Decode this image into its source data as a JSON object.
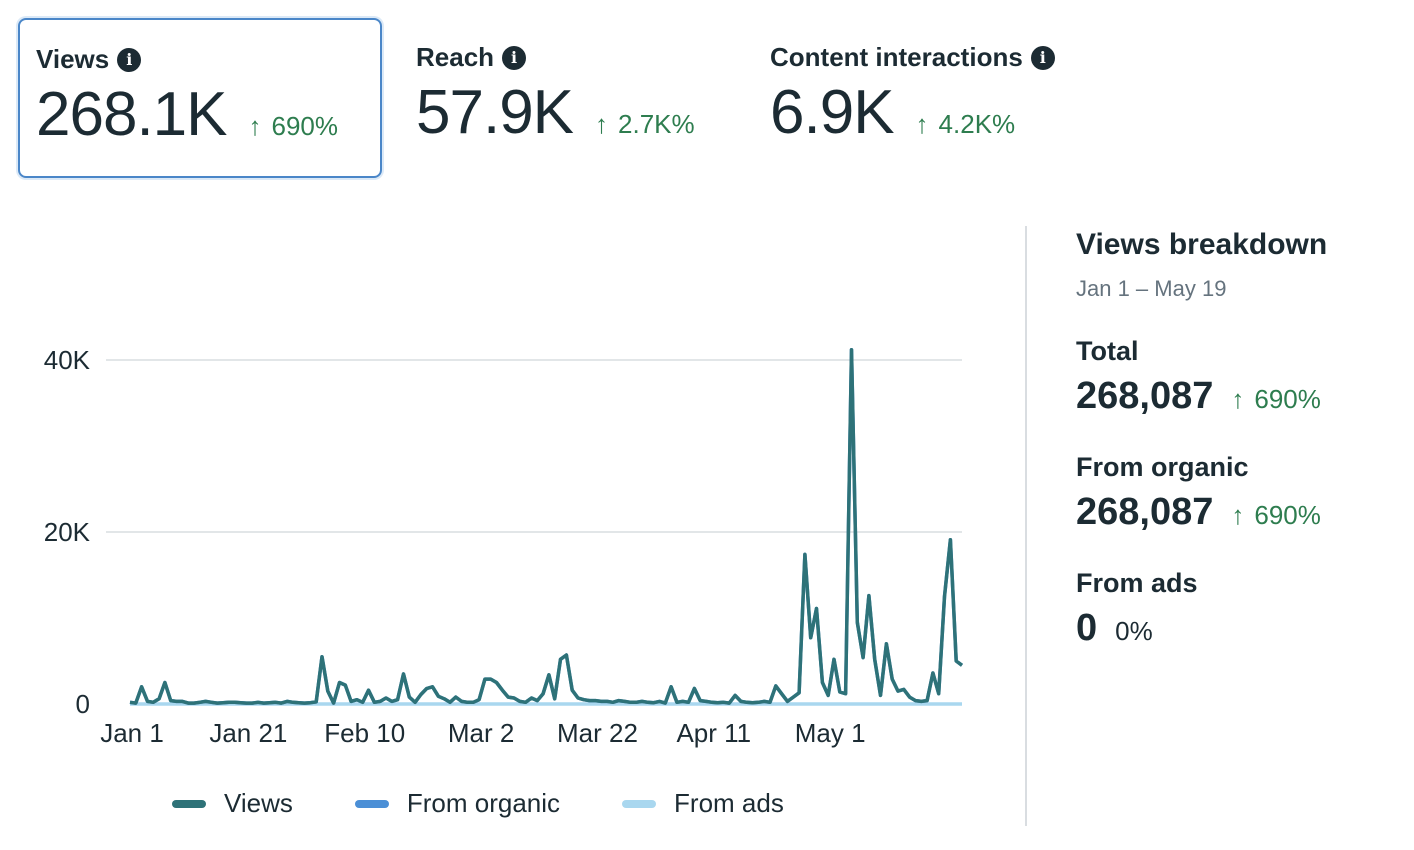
{
  "metrics": [
    {
      "label": "Views",
      "value": "268.1K",
      "delta": "690%",
      "selected": true
    },
    {
      "label": "Reach",
      "value": "57.9K",
      "delta": "2.7K%",
      "selected": false
    },
    {
      "label": "Content interactions",
      "value": "6.9K",
      "delta": "4.2K%",
      "selected": false
    }
  ],
  "legend": [
    {
      "label": "Views",
      "color": "#2e7278"
    },
    {
      "label": "From organic",
      "color": "#4b8fd6"
    },
    {
      "label": "From ads",
      "color": "#a9d7ef"
    }
  ],
  "breakdown": {
    "title": "Views breakdown",
    "range": "Jan 1 – May 19",
    "total": {
      "label": "Total",
      "value": "268,087",
      "delta": "690%"
    },
    "organic": {
      "label": "From organic",
      "value": "268,087",
      "delta": "690%"
    },
    "ads": {
      "label": "From ads",
      "value": "0",
      "delta": "0%"
    }
  },
  "colors": {
    "accent": "#2e7278",
    "positive": "#2e7d4f",
    "selected_border": "#4a86c8",
    "grid": "#d9dde1"
  },
  "chart_data": {
    "type": "line",
    "x_tick_labels": [
      "Jan 1",
      "Jan 21",
      "Feb 10",
      "Mar 2",
      "Mar 22",
      "Apr 11",
      "May 1"
    ],
    "y_tick_labels": [
      "0",
      "20K",
      "40K"
    ],
    "ylim": [
      0,
      40000
    ],
    "x_start": "Jan 1",
    "x_end": "May 19",
    "grid": true,
    "legend_position": "bottom",
    "series": [
      {
        "name": "Views",
        "color": "#2e7278",
        "values": [
          200,
          100,
          2000,
          300,
          200,
          600,
          2500,
          400,
          300,
          300,
          100,
          100,
          200,
          300,
          200,
          100,
          150,
          200,
          200,
          150,
          100,
          100,
          200,
          100,
          150,
          200,
          100,
          300,
          200,
          150,
          100,
          150,
          250,
          5500,
          1500,
          100,
          2500,
          2200,
          300,
          500,
          200,
          1600,
          200,
          300,
          700,
          300,
          500,
          3500,
          800,
          200,
          1100,
          1800,
          2000,
          900,
          600,
          200,
          800,
          300,
          200,
          200,
          500,
          2900,
          2900,
          2500,
          1600,
          800,
          700,
          300,
          200,
          700,
          400,
          1200,
          3400,
          600,
          5200,
          5700,
          1600,
          700,
          500,
          400,
          400,
          300,
          300,
          200,
          400,
          300,
          200,
          200,
          300,
          200,
          150,
          300,
          100,
          2000,
          200,
          300,
          200,
          1800,
          400,
          300,
          200,
          150,
          200,
          100,
          1000,
          300,
          200,
          150,
          200,
          300,
          200,
          2100,
          1200,
          300,
          800,
          1300,
          17400,
          7700,
          11100,
          2500,
          1000,
          5200,
          1400,
          1200,
          41200,
          9500,
          5400,
          12600,
          5200,
          1000,
          7000,
          2900,
          1500,
          1700,
          800,
          400,
          300,
          400,
          3600,
          1200,
          12500,
          19100,
          5000,
          4500
        ]
      },
      {
        "name": "From organic",
        "color": "#4b8fd6",
        "values": "same as Views"
      },
      {
        "name": "From ads",
        "color": "#a9d7ef",
        "values": "all 0"
      }
    ]
  }
}
